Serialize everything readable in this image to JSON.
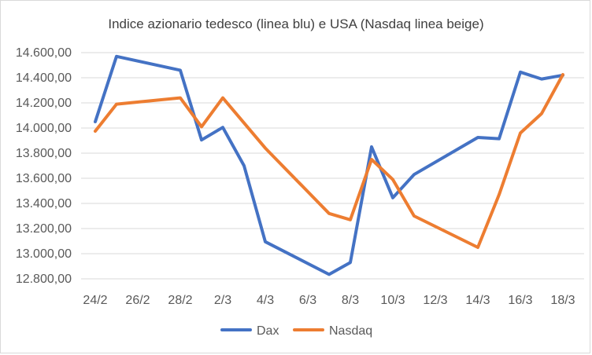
{
  "chart_data": {
    "type": "line",
    "title": "Indice azionario tedesco (linea blu) e USA (Nasdaq linea beige)",
    "xlabel": "",
    "ylabel": "",
    "ylim": [
      12800,
      14600
    ],
    "yticks": [
      "12.800,00",
      "13.000,00",
      "13.200,00",
      "13.400,00",
      "13.600,00",
      "13.800,00",
      "14.000,00",
      "14.200,00",
      "14.400,00",
      "14.600,00"
    ],
    "x": [
      "24/2",
      "25/2",
      "28/2",
      "1/3",
      "2/3",
      "3/3",
      "4/3",
      "7/3",
      "8/3",
      "9/3",
      "10/3",
      "11/3",
      "14/3",
      "15/3",
      "16/3",
      "17/3",
      "18/3"
    ],
    "x_days": [
      0,
      1,
      4,
      5,
      6,
      7,
      8,
      11,
      12,
      13,
      14,
      15,
      18,
      19,
      20,
      21,
      22
    ],
    "xtick_labels": [
      "24/2",
      "26/2",
      "28/2",
      "2/3",
      "4/3",
      "6/3",
      "8/3",
      "10/3",
      "12/3",
      "14/3",
      "16/3",
      "18/3"
    ],
    "xtick_days": [
      0,
      2,
      4,
      6,
      8,
      10,
      12,
      14,
      16,
      18,
      20,
      22
    ],
    "series": [
      {
        "name": "Dax",
        "color": "#4472C4",
        "values": [
          14050,
          14570,
          14460,
          13905,
          14005,
          13700,
          13095,
          12835,
          12930,
          13850,
          13445,
          13630,
          13925,
          13915,
          14445,
          14390,
          14420
        ]
      },
      {
        "name": "Nasdaq",
        "color": "#ED7D31",
        "values": [
          13975,
          14190,
          14240,
          14010,
          14240,
          14040,
          13840,
          13320,
          13270,
          13750,
          13590,
          13300,
          13050,
          13470,
          13960,
          14115,
          14425
        ]
      }
    ],
    "grid": "horizontal",
    "legend": "bottom"
  }
}
